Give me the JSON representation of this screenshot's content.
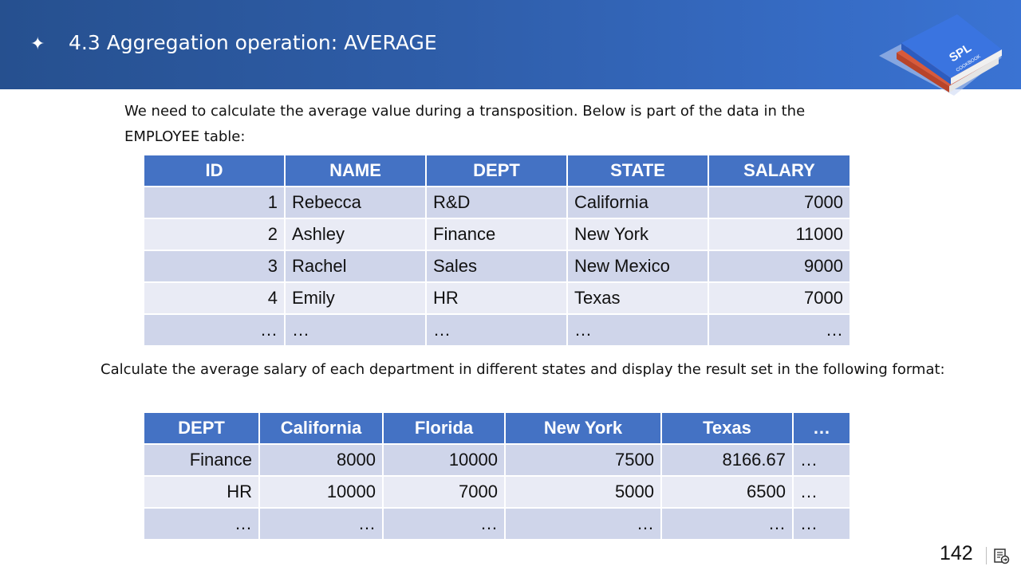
{
  "header": {
    "bullet": "✦",
    "title": "4.3 Aggregation operation: AVERAGE",
    "logo_text_top": "SPL",
    "logo_text_bottom": "COOKBOOK"
  },
  "intro_text": "We need to calculate the average value during a transposition. Below is part of the data in the EMPLOYEE table:",
  "employee_table": {
    "headers": [
      "ID",
      "NAME",
      "DEPT",
      "STATE",
      "SALARY"
    ],
    "rows": [
      [
        "1",
        "Rebecca",
        "R&D",
        "California",
        "7000"
      ],
      [
        "2",
        "Ashley",
        "Finance",
        "New York",
        "11000"
      ],
      [
        "3",
        "Rachel",
        "Sales",
        "New Mexico",
        "9000"
      ],
      [
        "4",
        "Emily",
        "HR",
        "Texas",
        "7000"
      ],
      [
        "…",
        "…",
        "…",
        "…",
        "…"
      ]
    ]
  },
  "mid_text": "Calculate the average salary of each department in different states and display the result set in the following format:",
  "result_table": {
    "headers": [
      "DEPT",
      "California",
      "Florida",
      "New York",
      "Texas",
      "…"
    ],
    "rows": [
      [
        "Finance",
        "8000",
        "10000",
        "7500",
        "8166.67",
        "…"
      ],
      [
        "HR",
        "10000",
        "7000",
        "5000",
        "6500",
        "…"
      ],
      [
        "…",
        "…",
        "…",
        "…",
        "…",
        "…"
      ]
    ]
  },
  "footer": {
    "page_number": "142"
  },
  "colors": {
    "header_bg": "#2f5eaa",
    "table_header_bg": "#4472c4",
    "row_odd": "#cfd5ea",
    "row_even": "#e9ebf5"
  }
}
